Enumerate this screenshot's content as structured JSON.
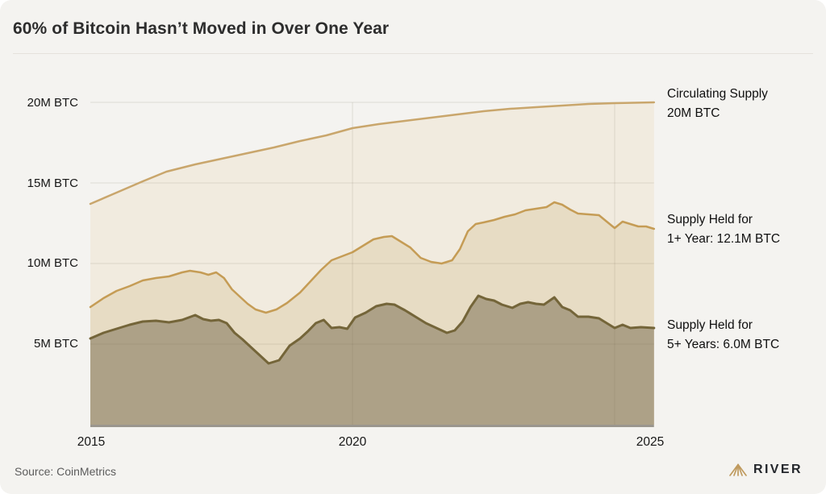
{
  "header": {
    "title": "60% of Bitcoin Hasn’t Moved in Over One Year"
  },
  "labels": {
    "circulating": {
      "line1": "Circulating Supply",
      "line2": "20M BTC"
    },
    "one_year": {
      "line1": "Supply Held for",
      "line2": "1+ Year: 12.1M BTC"
    },
    "five_year": {
      "line1": "Supply Held for",
      "line2": "5+ Years: 6.0M BTC"
    }
  },
  "footer": {
    "source": "Source: CoinMetrics",
    "brand": "RIVER",
    "brand_icon": "mountain-fan-icon",
    "brand_icon_color": "#bf9a5e"
  },
  "chart_data": {
    "type": "area",
    "title": "60% of Bitcoin Hasn’t Moved in Over One Year",
    "grid": true,
    "legend_position": "right-annotations",
    "x_axis": {
      "ticks": [
        "2015",
        "2020",
        "2025"
      ],
      "tick_values": [
        2015,
        2020,
        2025
      ],
      "range": [
        2015,
        2025.75
      ]
    },
    "y_axis": {
      "unit": "M BTC",
      "ticks": [
        "20M BTC",
        "15M BTC",
        "10M BTC",
        "5M BTC"
      ],
      "tick_values": [
        20,
        15,
        10,
        5
      ],
      "range": [
        0,
        20.5
      ]
    },
    "series": [
      {
        "name": "Circulating Supply",
        "end_label": "Circulating Supply 20M BTC",
        "end_value_m_btc": 20.0,
        "color": "#c9a66c",
        "fill": "#f1ebdf",
        "points": [
          [
            2015,
            13.7
          ],
          [
            2015.5,
            14.4
          ],
          [
            2016,
            15.1
          ],
          [
            2016.45,
            15.7
          ],
          [
            2017,
            16.15
          ],
          [
            2017.5,
            16.5
          ],
          [
            2018,
            16.85
          ],
          [
            2018.5,
            17.2
          ],
          [
            2019,
            17.6
          ],
          [
            2019.5,
            17.95
          ],
          [
            2020,
            18.4
          ],
          [
            2020.5,
            18.65
          ],
          [
            2021,
            18.85
          ],
          [
            2021.5,
            19.05
          ],
          [
            2022,
            19.25
          ],
          [
            2022.5,
            19.45
          ],
          [
            2023,
            19.6
          ],
          [
            2023.5,
            19.7
          ],
          [
            2024,
            19.8
          ],
          [
            2024.5,
            19.9
          ],
          [
            2025,
            19.95
          ],
          [
            2025.75,
            20.0
          ]
        ]
      },
      {
        "name": "Supply Held for 1+ Year",
        "end_label": "Supply Held for 1+ Year: 12.1M BTC",
        "end_value_m_btc": 12.1,
        "color": "#c59c55",
        "fill": "#e7dcc4",
        "points": [
          [
            2015,
            7.3
          ],
          [
            2015.25,
            7.85
          ],
          [
            2015.5,
            8.3
          ],
          [
            2015.75,
            8.6
          ],
          [
            2016,
            8.95
          ],
          [
            2016.25,
            9.1
          ],
          [
            2016.5,
            9.2
          ],
          [
            2016.75,
            9.45
          ],
          [
            2016.9,
            9.55
          ],
          [
            2017.1,
            9.45
          ],
          [
            2017.25,
            9.3
          ],
          [
            2017.4,
            9.45
          ],
          [
            2017.55,
            9.1
          ],
          [
            2017.7,
            8.4
          ],
          [
            2017.85,
            7.95
          ],
          [
            2018,
            7.5
          ],
          [
            2018.15,
            7.15
          ],
          [
            2018.35,
            6.95
          ],
          [
            2018.55,
            7.15
          ],
          [
            2018.75,
            7.55
          ],
          [
            2019,
            8.2
          ],
          [
            2019.2,
            8.9
          ],
          [
            2019.4,
            9.6
          ],
          [
            2019.6,
            10.2
          ],
          [
            2019.8,
            10.45
          ],
          [
            2020,
            10.7
          ],
          [
            2020.2,
            11.1
          ],
          [
            2020.4,
            11.5
          ],
          [
            2020.6,
            11.65
          ],
          [
            2020.75,
            11.7
          ],
          [
            2020.9,
            11.4
          ],
          [
            2021.1,
            11.0
          ],
          [
            2021.3,
            10.35
          ],
          [
            2021.5,
            10.1
          ],
          [
            2021.7,
            10.0
          ],
          [
            2021.9,
            10.2
          ],
          [
            2022.05,
            10.9
          ],
          [
            2022.2,
            12.0
          ],
          [
            2022.35,
            12.45
          ],
          [
            2022.5,
            12.55
          ],
          [
            2022.7,
            12.7
          ],
          [
            2022.9,
            12.9
          ],
          [
            2023.1,
            13.05
          ],
          [
            2023.3,
            13.3
          ],
          [
            2023.5,
            13.4
          ],
          [
            2023.7,
            13.5
          ],
          [
            2023.85,
            13.8
          ],
          [
            2024,
            13.65
          ],
          [
            2024.15,
            13.35
          ],
          [
            2024.3,
            13.1
          ],
          [
            2024.5,
            13.05
          ],
          [
            2024.7,
            13.0
          ],
          [
            2024.85,
            12.6
          ],
          [
            2025,
            12.2
          ],
          [
            2025.15,
            12.6
          ],
          [
            2025.3,
            12.45
          ],
          [
            2025.45,
            12.3
          ],
          [
            2025.6,
            12.3
          ],
          [
            2025.75,
            12.15
          ]
        ]
      },
      {
        "name": "Supply Held for 5+ Years",
        "end_label": "Supply Held for 5+ Years: 6.0M BTC",
        "end_value_m_btc": 6.0,
        "color": "#746539",
        "fill": "#ada187",
        "points": [
          [
            2015,
            5.35
          ],
          [
            2015.25,
            5.7
          ],
          [
            2015.5,
            5.95
          ],
          [
            2015.75,
            6.2
          ],
          [
            2016,
            6.4
          ],
          [
            2016.25,
            6.45
          ],
          [
            2016.5,
            6.35
          ],
          [
            2016.75,
            6.5
          ],
          [
            2017,
            6.8
          ],
          [
            2017.15,
            6.55
          ],
          [
            2017.3,
            6.45
          ],
          [
            2017.45,
            6.5
          ],
          [
            2017.6,
            6.3
          ],
          [
            2017.75,
            5.7
          ],
          [
            2017.9,
            5.3
          ],
          [
            2018.05,
            4.85
          ],
          [
            2018.2,
            4.4
          ],
          [
            2018.4,
            3.8
          ],
          [
            2018.6,
            4.0
          ],
          [
            2018.8,
            4.9
          ],
          [
            2019,
            5.35
          ],
          [
            2019.15,
            5.8
          ],
          [
            2019.3,
            6.3
          ],
          [
            2019.45,
            6.5
          ],
          [
            2019.6,
            6.0
          ],
          [
            2019.75,
            6.05
          ],
          [
            2019.9,
            5.95
          ],
          [
            2020.05,
            6.65
          ],
          [
            2020.25,
            6.95
          ],
          [
            2020.45,
            7.35
          ],
          [
            2020.65,
            7.5
          ],
          [
            2020.8,
            7.45
          ],
          [
            2021,
            7.1
          ],
          [
            2021.2,
            6.7
          ],
          [
            2021.4,
            6.3
          ],
          [
            2021.6,
            6.0
          ],
          [
            2021.8,
            5.7
          ],
          [
            2021.95,
            5.85
          ],
          [
            2022.1,
            6.4
          ],
          [
            2022.25,
            7.3
          ],
          [
            2022.4,
            8.0
          ],
          [
            2022.55,
            7.8
          ],
          [
            2022.7,
            7.7
          ],
          [
            2022.85,
            7.45
          ],
          [
            2023.05,
            7.25
          ],
          [
            2023.2,
            7.5
          ],
          [
            2023.35,
            7.6
          ],
          [
            2023.5,
            7.5
          ],
          [
            2023.65,
            7.45
          ],
          [
            2023.85,
            7.9
          ],
          [
            2024,
            7.3
          ],
          [
            2024.15,
            7.1
          ],
          [
            2024.3,
            6.7
          ],
          [
            2024.5,
            6.7
          ],
          [
            2024.7,
            6.6
          ],
          [
            2024.85,
            6.3
          ],
          [
            2025,
            6.0
          ],
          [
            2025.15,
            6.2
          ],
          [
            2025.3,
            6.0
          ],
          [
            2025.5,
            6.05
          ],
          [
            2025.75,
            6.0
          ]
        ]
      }
    ]
  }
}
